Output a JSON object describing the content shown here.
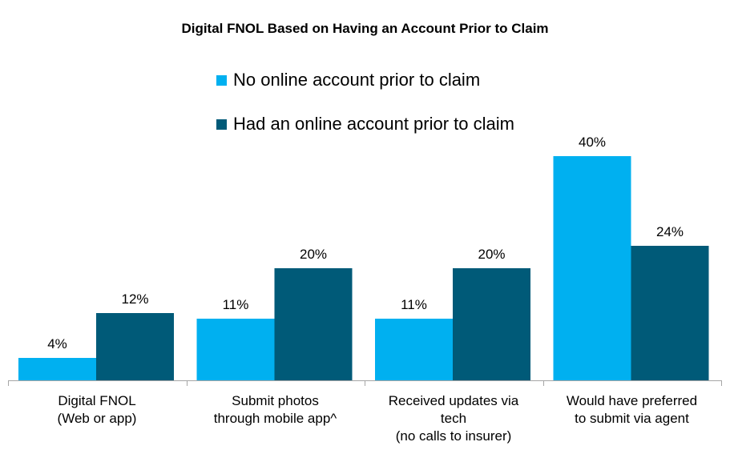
{
  "chart_data": {
    "type": "bar",
    "title": "Digital FNOL Based on Having an Account Prior to Claim",
    "categories": [
      "Digital FNOL\n(Web or app)",
      "Submit photos\nthrough mobile app^",
      "Received updates via\ntech\n(no calls to insurer)",
      "Would have preferred\nto submit via agent"
    ],
    "series": [
      {
        "name": "No online account prior to claim",
        "values": [
          4,
          11,
          11,
          40
        ],
        "labels": [
          "4%",
          "11%",
          "11%",
          "40%"
        ],
        "color": "#00B0F0"
      },
      {
        "name": "Had an online account prior to claim",
        "values": [
          12,
          20,
          20,
          24
        ],
        "labels": [
          "12%",
          "20%",
          "20%",
          "24%"
        ],
        "color": "#005A78"
      }
    ],
    "ylim": [
      0,
      40
    ],
    "value_unit": "%",
    "grid": false,
    "legend_position": "top"
  }
}
